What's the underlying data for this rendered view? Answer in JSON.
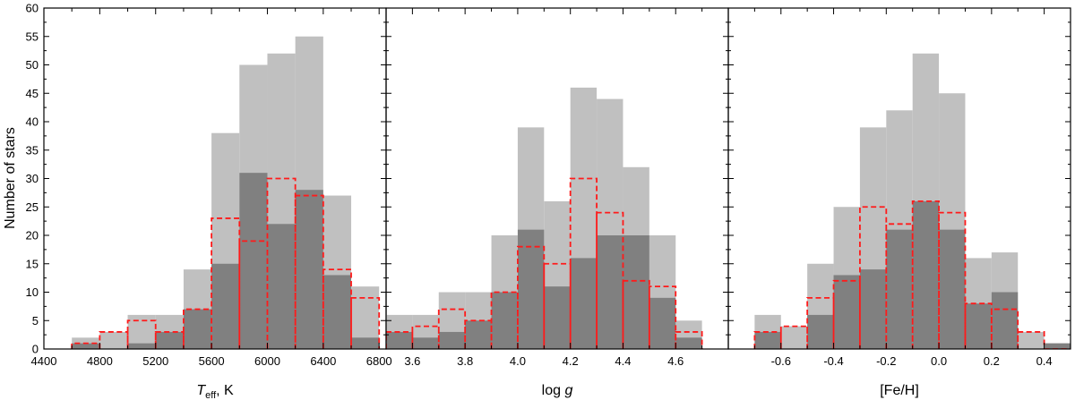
{
  "colors": {
    "all": "#c0c0c0",
    "subset": "#808080",
    "dashed": "#ff1a1a",
    "frame": "#000000"
  },
  "chart_data": {
    "type": "bar",
    "ylabel": "Number of stars",
    "ylim": [
      0,
      60
    ],
    "yticks": [
      0,
      5,
      10,
      15,
      20,
      25,
      30,
      35,
      40,
      45,
      50,
      55,
      60
    ],
    "series_styles": [
      {
        "key": "all",
        "style": "filled light gray"
      },
      {
        "key": "subset",
        "style": "filled dark gray"
      },
      {
        "key": "dashed",
        "style": "red dashed outline"
      }
    ],
    "panels": [
      {
        "xlabel": {
          "base": "T",
          "sub": "eff",
          "rest": ", K"
        },
        "xlim": [
          4400,
          6850
        ],
        "xticks": [
          4400,
          4800,
          5200,
          5600,
          6000,
          6400,
          6800
        ],
        "xtick_labels": [
          "4400",
          "4800",
          "5200",
          "5600",
          "6000",
          "6400",
          "6800"
        ],
        "minor_step": 200,
        "bin_edges": [
          4600,
          4800,
          5000,
          5200,
          5400,
          5600,
          5800,
          6000,
          6200,
          6400,
          6600,
          6800
        ],
        "all": [
          2,
          3,
          6,
          6,
          14,
          38,
          50,
          52,
          55,
          27,
          11
        ],
        "subset": [
          1,
          0,
          1,
          3,
          7,
          15,
          31,
          22,
          28,
          13,
          2
        ],
        "dashed": [
          1,
          3,
          5,
          3,
          7,
          23,
          19,
          30,
          27,
          14,
          9
        ]
      },
      {
        "xlabel": {
          "base": "log ",
          "sub": "",
          "rest": "",
          "italic": "g"
        },
        "xlim": [
          3.5,
          4.8
        ],
        "xticks": [
          3.6,
          3.8,
          4.0,
          4.2,
          4.4,
          4.6
        ],
        "xtick_labels": [
          "3.6",
          "3.8",
          "4.0",
          "4.2",
          "4.4",
          "4.6"
        ],
        "minor_step": 0.1,
        "bin_edges": [
          3.5,
          3.6,
          3.7,
          3.8,
          3.9,
          4.0,
          4.1,
          4.2,
          4.3,
          4.4,
          4.5,
          4.6,
          4.7
        ],
        "all": [
          6,
          6,
          10,
          10,
          20,
          39,
          26,
          46,
          44,
          32,
          20,
          5
        ],
        "subset": [
          3,
          2,
          3,
          5,
          10,
          21,
          11,
          16,
          20,
          20,
          9,
          2
        ],
        "dashed": [
          3,
          4,
          7,
          5,
          10,
          18,
          15,
          30,
          24,
          12,
          11,
          3
        ]
      },
      {
        "xlabel": {
          "base": "[Fe/H]",
          "sub": "",
          "rest": ""
        },
        "xlim": [
          -0.8,
          0.5
        ],
        "xticks": [
          -0.6,
          -0.4,
          -0.2,
          0.0,
          0.2,
          0.4
        ],
        "xtick_labels": [
          "-0.6",
          "-0.4",
          "-0.2",
          "0.0",
          "0.2",
          "0.4"
        ],
        "minor_step": 0.1,
        "bin_edges": [
          -0.7,
          -0.6,
          -0.5,
          -0.4,
          -0.3,
          -0.2,
          -0.1,
          0.0,
          0.1,
          0.2,
          0.3,
          0.4,
          0.5
        ],
        "all": [
          6,
          4,
          15,
          25,
          39,
          42,
          52,
          45,
          16,
          17,
          3,
          1
        ],
        "subset": [
          3,
          0,
          6,
          13,
          14,
          21,
          26,
          21,
          8,
          10,
          0,
          1
        ],
        "dashed": [
          3,
          4,
          9,
          12,
          25,
          22,
          26,
          24,
          8,
          7,
          3,
          0
        ]
      }
    ]
  }
}
